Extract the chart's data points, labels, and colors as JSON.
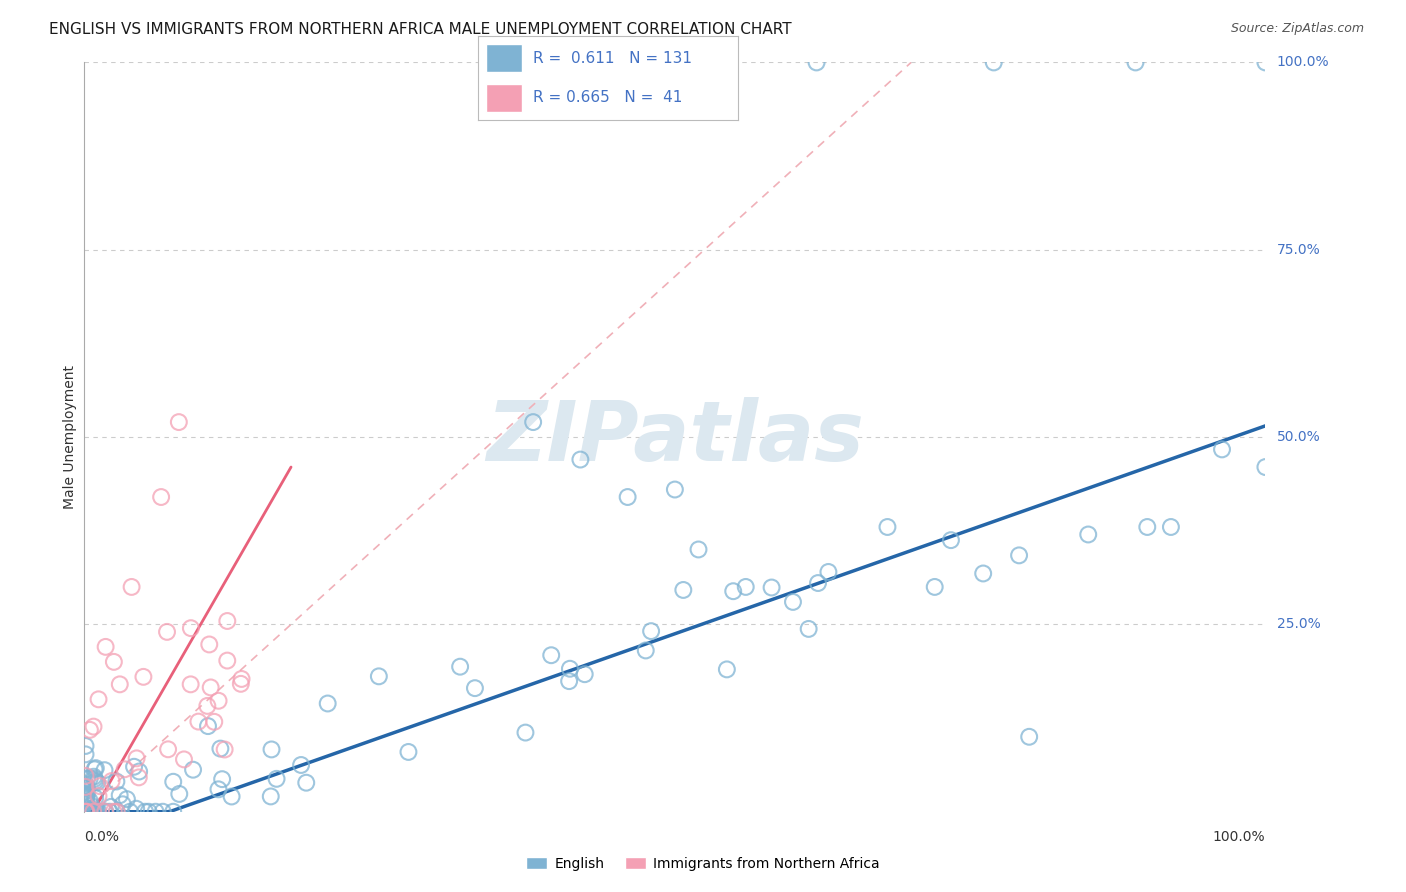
{
  "title": "ENGLISH VS IMMIGRANTS FROM NORTHERN AFRICA MALE UNEMPLOYMENT CORRELATION CHART",
  "source": "Source: ZipAtlas.com",
  "ylabel": "Male Unemployment",
  "legend_R_english": "0.611",
  "legend_N_english": "131",
  "legend_R_immigrant": "0.665",
  "legend_N_immigrant": "41",
  "watermark": "ZIPatlas",
  "english_color": "#7fb3d3",
  "english_edge_color": "#7fb3d3",
  "immigrant_color": "#f4a0b4",
  "immigrant_edge_color": "#f4a0b4",
  "blue_line_color": "#2566a8",
  "pink_line_color": "#e8607a",
  "pink_dash_color": "#f0b0b8",
  "background_color": "#ffffff",
  "title_fontsize": 11,
  "watermark_color": "#dce8f0",
  "watermark_fontsize": 60,
  "grid_color": "#cccccc",
  "y_labels": [
    "25.0%",
    "50.0%",
    "75.0%",
    "100.0%"
  ],
  "y_label_vals": [
    0.25,
    0.5,
    0.75,
    1.0
  ],
  "y_label_color": "#4472c4"
}
